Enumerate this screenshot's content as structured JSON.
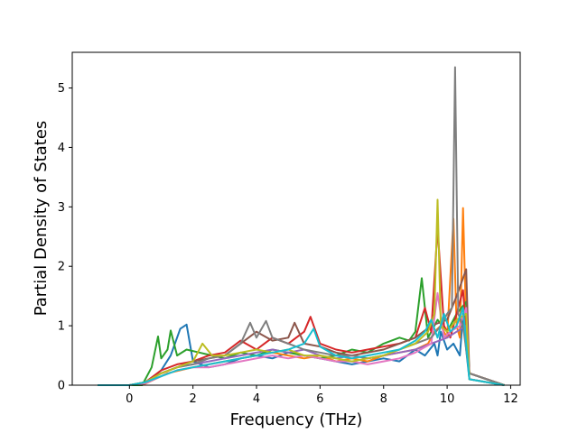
{
  "chart_data": {
    "type": "line",
    "xlabel": "Frequency (THz)",
    "ylabel": "Partial Density of States",
    "xlim": [
      -1.8,
      12.3
    ],
    "ylim": [
      0,
      5.6
    ],
    "xticks": [
      "0",
      "2",
      "4",
      "6",
      "8",
      "10",
      "12"
    ],
    "yticks": [
      "0",
      "1",
      "2",
      "3",
      "4",
      "5"
    ],
    "grid": false,
    "legend": "none",
    "colors": [
      "#1f77b4",
      "#ff7f0e",
      "#2ca02c",
      "#d62728",
      "#9467bd",
      "#8c564b",
      "#e377c2",
      "#7f7f7f",
      "#bcbd22",
      "#17becf"
    ],
    "series": [
      {
        "color": "#1f77b4",
        "x": [
          -1.0,
          0.0,
          0.3,
          0.6,
          1.0,
          1.3,
          1.6,
          1.8,
          2.0,
          2.5,
          3.0,
          3.5,
          4.0,
          4.5,
          5.0,
          5.5,
          6.0,
          6.5,
          7.0,
          7.5,
          8.0,
          8.5,
          9.0,
          9.3,
          9.6,
          9.7,
          9.8,
          10.0,
          10.2,
          10.4,
          10.5,
          10.6,
          10.7,
          11.8
        ],
        "y": [
          0,
          0,
          0,
          0.08,
          0.25,
          0.5,
          0.95,
          1.02,
          0.4,
          0.3,
          0.35,
          0.45,
          0.5,
          0.45,
          0.55,
          0.5,
          0.45,
          0.4,
          0.35,
          0.4,
          0.45,
          0.4,
          0.6,
          0.5,
          0.7,
          0.5,
          0.9,
          0.6,
          0.7,
          0.5,
          1.2,
          0.6,
          0.1,
          0
        ]
      },
      {
        "color": "#ff7f0e",
        "x": [
          -1.0,
          0.0,
          0.4,
          0.8,
          1.2,
          2.0,
          2.5,
          3.0,
          3.5,
          4.0,
          4.5,
          5.0,
          5.5,
          6.0,
          6.5,
          7.0,
          7.5,
          8.0,
          8.5,
          9.0,
          9.4,
          9.6,
          9.8,
          10.0,
          10.2,
          10.3,
          10.4,
          10.5,
          10.6,
          10.7,
          11.8
        ],
        "y": [
          0,
          0,
          0,
          0.1,
          0.2,
          0.3,
          0.35,
          0.4,
          0.45,
          0.5,
          0.55,
          0.5,
          0.45,
          0.5,
          0.4,
          0.45,
          0.4,
          0.5,
          0.55,
          0.6,
          0.7,
          0.9,
          1.0,
          0.8,
          2.8,
          1.0,
          0.8,
          2.98,
          1.0,
          0.2,
          0
        ]
      },
      {
        "color": "#2ca02c",
        "x": [
          -1.0,
          0.0,
          0.4,
          0.7,
          0.9,
          1.0,
          1.2,
          1.3,
          1.5,
          1.8,
          2.2,
          2.6,
          3.0,
          3.5,
          4.0,
          4.5,
          5.0,
          5.5,
          6.0,
          6.5,
          7.0,
          7.5,
          8.0,
          8.5,
          8.8,
          9.0,
          9.2,
          9.4,
          9.7,
          10.0,
          10.3,
          10.6,
          10.7,
          11.8
        ],
        "y": [
          0,
          0,
          0,
          0.3,
          0.82,
          0.45,
          0.6,
          0.92,
          0.5,
          0.6,
          0.55,
          0.5,
          0.45,
          0.55,
          0.5,
          0.6,
          0.55,
          0.5,
          0.45,
          0.5,
          0.6,
          0.55,
          0.7,
          0.8,
          0.75,
          0.9,
          1.8,
          0.8,
          1.1,
          0.9,
          1.2,
          1.4,
          0.2,
          0
        ]
      },
      {
        "color": "#d62728",
        "x": [
          -1.0,
          0.0,
          0.5,
          1.0,
          1.5,
          2.0,
          2.5,
          3.0,
          3.5,
          4.0,
          4.5,
          5.0,
          5.5,
          5.7,
          6.0,
          6.5,
          7.0,
          7.5,
          8.0,
          8.5,
          9.0,
          9.3,
          9.5,
          9.7,
          9.9,
          10.1,
          10.3,
          10.5,
          10.7,
          11.8
        ],
        "y": [
          0,
          0,
          0.05,
          0.25,
          0.35,
          0.4,
          0.5,
          0.55,
          0.75,
          0.6,
          0.8,
          0.7,
          0.9,
          1.15,
          0.7,
          0.6,
          0.55,
          0.6,
          0.65,
          0.7,
          0.8,
          1.3,
          0.9,
          2.65,
          1.0,
          0.8,
          1.2,
          1.6,
          0.2,
          0
        ]
      },
      {
        "color": "#9467bd",
        "x": [
          -1.0,
          0.0,
          0.5,
          1.0,
          1.5,
          2.0,
          2.5,
          3.0,
          3.5,
          4.0,
          4.5,
          5.0,
          5.5,
          6.0,
          6.5,
          7.0,
          7.5,
          8.0,
          8.5,
          9.0,
          9.5,
          10.0,
          10.3,
          10.6,
          10.7,
          11.8
        ],
        "y": [
          0,
          0,
          0.05,
          0.2,
          0.3,
          0.35,
          0.4,
          0.45,
          0.5,
          0.55,
          0.6,
          0.55,
          0.6,
          0.5,
          0.45,
          0.5,
          0.45,
          0.5,
          0.55,
          0.6,
          0.7,
          0.8,
          0.9,
          1.0,
          0.1,
          0
        ]
      },
      {
        "color": "#8c564b",
        "x": [
          -1.0,
          0.0,
          0.5,
          1.0,
          1.5,
          2.0,
          2.5,
          3.0,
          3.5,
          4.0,
          4.5,
          5.0,
          5.2,
          5.5,
          6.0,
          6.5,
          7.0,
          7.5,
          8.0,
          8.5,
          9.0,
          9.5,
          10.0,
          10.3,
          10.6,
          10.7,
          11.8
        ],
        "y": [
          0,
          0,
          0.05,
          0.2,
          0.3,
          0.4,
          0.45,
          0.5,
          0.7,
          0.9,
          0.75,
          0.8,
          1.05,
          0.7,
          0.65,
          0.55,
          0.5,
          0.55,
          0.6,
          0.7,
          0.8,
          1.0,
          1.1,
          1.5,
          1.95,
          0.2,
          0
        ]
      },
      {
        "color": "#e377c2",
        "x": [
          -1.0,
          0.0,
          0.5,
          1.0,
          1.5,
          2.0,
          2.5,
          3.0,
          3.5,
          4.0,
          4.5,
          5.0,
          5.5,
          6.0,
          6.5,
          7.0,
          7.5,
          8.0,
          8.5,
          9.0,
          9.5,
          9.7,
          9.9,
          10.1,
          10.4,
          10.6,
          10.7,
          11.8
        ],
        "y": [
          0,
          0,
          0.03,
          0.15,
          0.25,
          0.3,
          0.3,
          0.35,
          0.4,
          0.45,
          0.5,
          0.45,
          0.5,
          0.45,
          0.4,
          0.4,
          0.35,
          0.4,
          0.45,
          0.55,
          0.7,
          1.55,
          0.8,
          0.9,
          1.0,
          1.3,
          0.1,
          0
        ]
      },
      {
        "color": "#7f7f7f",
        "x": [
          -1.0,
          0.0,
          0.5,
          1.0,
          1.5,
          2.0,
          2.5,
          3.0,
          3.5,
          3.8,
          4.0,
          4.3,
          4.5,
          5.0,
          5.5,
          6.0,
          6.5,
          7.0,
          7.5,
          8.0,
          8.5,
          9.0,
          9.5,
          9.8,
          10.0,
          10.15,
          10.25,
          10.35,
          10.5,
          10.7,
          11.8
        ],
        "y": [
          0,
          0,
          0.05,
          0.2,
          0.3,
          0.35,
          0.45,
          0.5,
          0.7,
          1.05,
          0.8,
          1.08,
          0.8,
          0.7,
          0.6,
          0.55,
          0.5,
          0.5,
          0.45,
          0.5,
          0.6,
          0.7,
          0.8,
          1.0,
          1.2,
          1.3,
          5.35,
          1.2,
          1.0,
          0.2,
          0
        ]
      },
      {
        "color": "#bcbd22",
        "x": [
          -1.0,
          0.0,
          0.5,
          1.0,
          1.5,
          2.0,
          2.3,
          2.6,
          3.0,
          3.5,
          4.0,
          4.5,
          5.0,
          5.5,
          6.0,
          6.5,
          7.0,
          7.5,
          8.0,
          8.5,
          9.0,
          9.4,
          9.6,
          9.7,
          9.8,
          10.0,
          10.3,
          10.6,
          10.7,
          11.8
        ],
        "y": [
          0,
          0,
          0.05,
          0.2,
          0.3,
          0.4,
          0.7,
          0.5,
          0.5,
          0.55,
          0.6,
          0.55,
          0.6,
          0.5,
          0.5,
          0.45,
          0.4,
          0.45,
          0.5,
          0.6,
          0.7,
          0.9,
          1.2,
          3.12,
          1.0,
          0.9,
          1.1,
          1.2,
          0.1,
          0
        ]
      },
      {
        "color": "#17becf",
        "x": [
          -1.0,
          0.0,
          0.5,
          1.0,
          1.5,
          2.0,
          2.5,
          3.0,
          3.5,
          4.0,
          4.5,
          5.0,
          5.5,
          5.8,
          6.0,
          6.5,
          7.0,
          7.5,
          8.0,
          8.5,
          9.0,
          9.3,
          9.5,
          9.7,
          9.9,
          10.1,
          10.3,
          10.5,
          10.7,
          11.8
        ],
        "y": [
          0,
          0,
          0.05,
          0.15,
          0.25,
          0.3,
          0.35,
          0.4,
          0.45,
          0.5,
          0.55,
          0.6,
          0.7,
          0.95,
          0.65,
          0.5,
          0.45,
          0.5,
          0.55,
          0.6,
          0.75,
          0.9,
          1.1,
          0.8,
          1.2,
          0.9,
          1.0,
          1.3,
          0.1,
          0
        ]
      }
    ]
  }
}
